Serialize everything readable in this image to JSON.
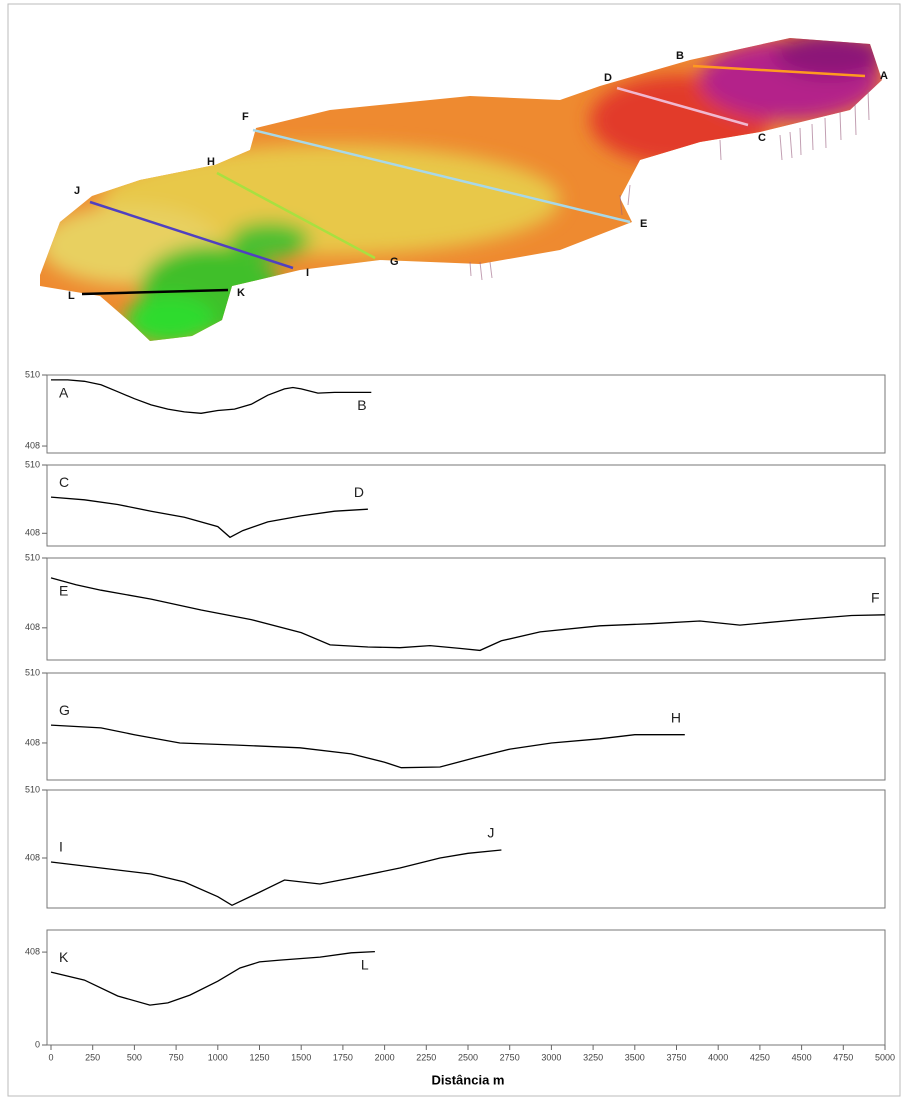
{
  "map": {
    "labels": [
      "A",
      "B",
      "C",
      "D",
      "E",
      "F",
      "G",
      "H",
      "I",
      "J",
      "K",
      "L"
    ]
  },
  "chart_data": [
    {
      "type": "line",
      "annotations": [
        "A",
        "B"
      ],
      "color": "#000000",
      "xlim": [
        0,
        5000
      ],
      "ylim": [
        398,
        510
      ],
      "yticks": [
        408,
        510
      ],
      "x": [
        0,
        100,
        200,
        300,
        400,
        500,
        600,
        700,
        800,
        900,
        1000,
        1100,
        1200,
        1300,
        1400,
        1450,
        1500,
        1600,
        1700,
        1800,
        1920
      ],
      "values": [
        503,
        503,
        501,
        496,
        486,
        476,
        467,
        461,
        457,
        455,
        459,
        461,
        468,
        481,
        490,
        492,
        490,
        484,
        485,
        485,
        485
      ]
    },
    {
      "type": "line",
      "annotations": [
        "C",
        "D"
      ],
      "color": "#000000",
      "xlim": [
        0,
        5000
      ],
      "ylim": [
        389,
        510
      ],
      "yticks": [
        408,
        510
      ],
      "x": [
        0,
        200,
        400,
        600,
        800,
        1000,
        1073,
        1150,
        1300,
        1500,
        1700,
        1900
      ],
      "values": [
        462,
        458,
        451,
        441,
        432,
        418,
        402,
        412,
        425,
        434,
        441,
        444
      ]
    },
    {
      "type": "line",
      "annotations": [
        "E",
        "F"
      ],
      "color": "#000000",
      "xlim": [
        0,
        5000
      ],
      "ylim": [
        361,
        510
      ],
      "yticks": [
        408,
        510
      ],
      "x": [
        0,
        150,
        300,
        600,
        900,
        1200,
        1500,
        1673,
        1900,
        2092,
        2272,
        2450,
        2572,
        2700,
        2932,
        3290,
        3600,
        3890,
        4130,
        4490,
        4800,
        5000
      ],
      "values": [
        481,
        471,
        463,
        450,
        434,
        420,
        401,
        383,
        380,
        379,
        382,
        378,
        375,
        389,
        402,
        411,
        414,
        418,
        412,
        420,
        426,
        427
      ]
    },
    {
      "type": "line",
      "annotations": [
        "G",
        "H"
      ],
      "color": "#000000",
      "xlim": [
        0,
        5000
      ],
      "ylim": [
        354,
        510
      ],
      "yticks": [
        408,
        510
      ],
      "x": [
        0,
        300,
        500,
        773,
        1100,
        1493,
        1800,
        2000,
        2100,
        2332,
        2550,
        2752,
        3000,
        3290,
        3500,
        3800
      ],
      "values": [
        434,
        430,
        420,
        408,
        405,
        401,
        392,
        380,
        372,
        373,
        387,
        399,
        408,
        414,
        420,
        420
      ]
    },
    {
      "type": "line",
      "annotations": [
        "I",
        "J"
      ],
      "color": "#000000",
      "xlim": [
        0,
        5000
      ],
      "ylim": [
        333,
        510
      ],
      "yticks": [
        408,
        510
      ],
      "x": [
        0,
        300,
        600,
        800,
        1000,
        1085,
        1253,
        1400,
        1613,
        1800,
        2092,
        2332,
        2500,
        2700
      ],
      "values": [
        402,
        393,
        384,
        372,
        350,
        337,
        357,
        375,
        369,
        378,
        393,
        408,
        415,
        420
      ]
    },
    {
      "type": "line",
      "annotations": [
        "K",
        "L"
      ],
      "color": "#000000",
      "xlim": [
        0,
        5000
      ],
      "ylim": [
        0,
        505
      ],
      "yticks": [
        0,
        408
      ],
      "x": [
        0,
        200,
        400,
        593,
        700,
        833,
        1000,
        1133,
        1250,
        1373,
        1613,
        1800,
        1942
      ],
      "values": [
        320,
        285,
        215,
        175,
        185,
        219,
        280,
        338,
        365,
        373,
        386,
        405,
        410
      ],
      "xticks": [
        0,
        250,
        500,
        750,
        1000,
        1250,
        1500,
        1750,
        2000,
        2250,
        2500,
        2750,
        3000,
        3250,
        3500,
        3750,
        4000,
        4250,
        4500,
        4750,
        5000
      ],
      "xlabel": "Distância m"
    }
  ]
}
